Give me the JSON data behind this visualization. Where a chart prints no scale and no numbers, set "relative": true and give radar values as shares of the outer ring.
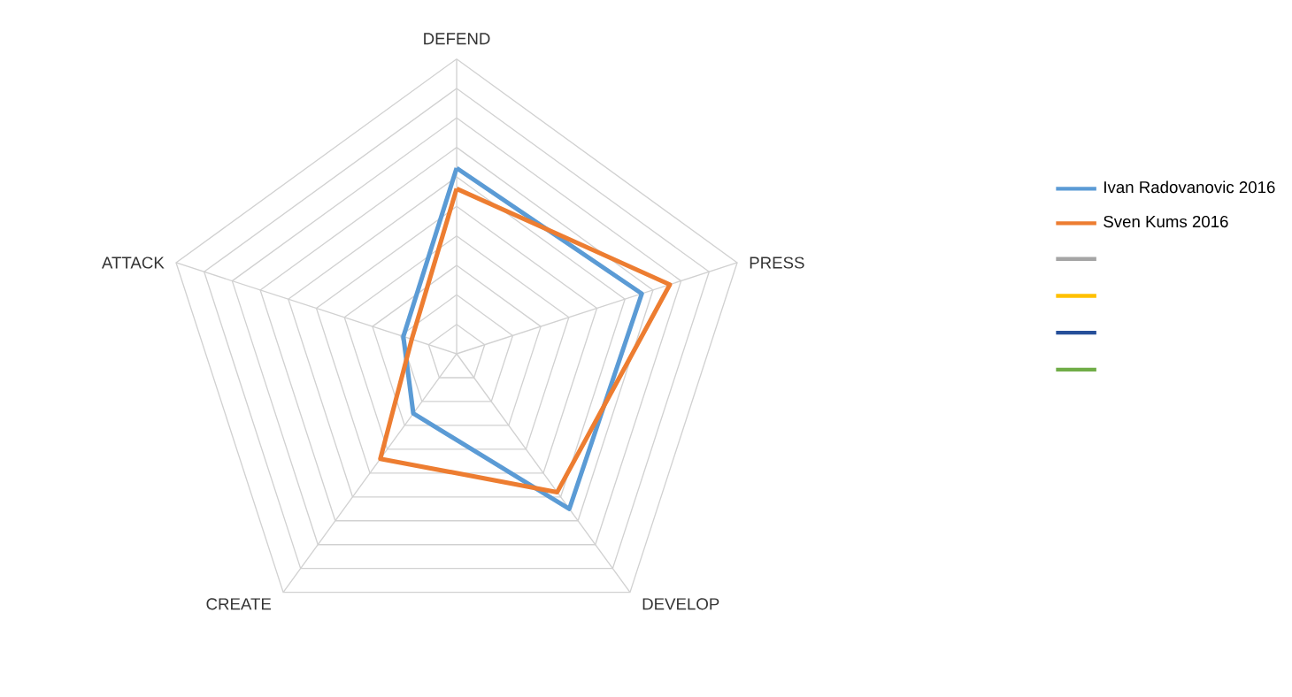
{
  "chart_data": {
    "type": "radar",
    "relative": true,
    "grid": true,
    "legend": "right",
    "categories": [
      "DEFEND",
      "PRESS",
      "DEVELOP",
      "CREATE",
      "ATTACK"
    ],
    "series": [
      {
        "name": "Ivan Radovanovic 2016",
        "color": "#5b9bd5",
        "values": [
          0.63,
          0.66,
          0.65,
          0.25,
          0.19
        ]
      },
      {
        "name": "Sven Kums 2016",
        "color": "#ed7d31",
        "values": [
          0.56,
          0.76,
          0.58,
          0.44,
          0.16
        ]
      },
      {
        "color": "#a5a5a5",
        "values": [
          null,
          null,
          null,
          null,
          null
        ]
      },
      {
        "color": "#ffc000",
        "values": [
          null,
          null,
          null,
          null,
          null
        ]
      },
      {
        "color": "#264f99",
        "values": [
          null,
          null,
          null,
          null,
          null
        ]
      },
      {
        "color": "#70ad47",
        "values": [
          null,
          null,
          null,
          null,
          null
        ]
      }
    ]
  }
}
